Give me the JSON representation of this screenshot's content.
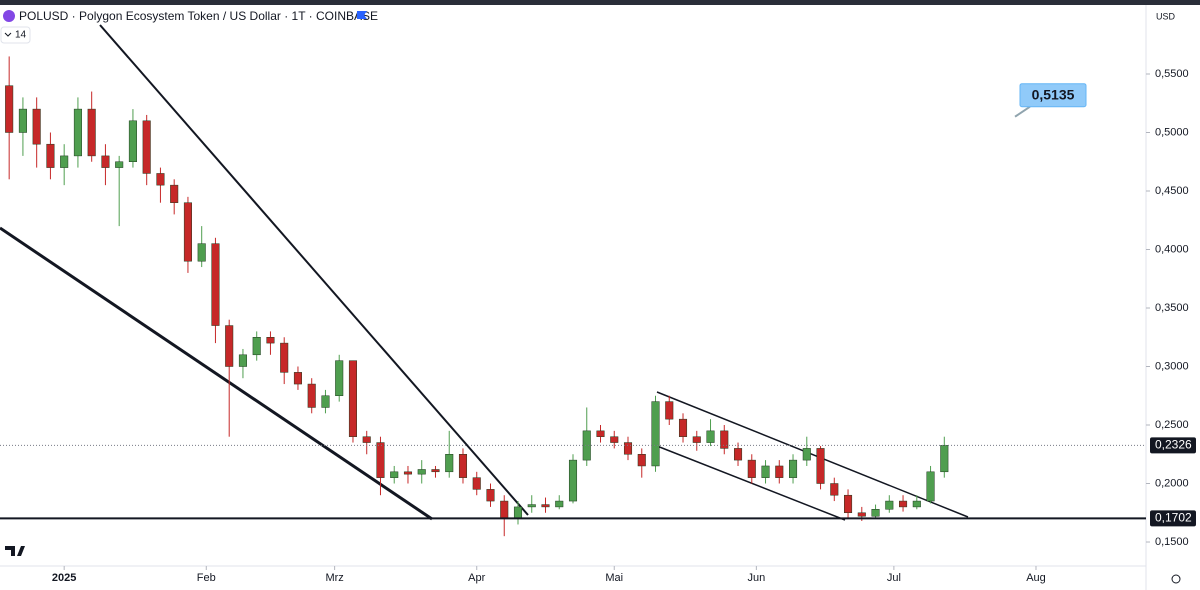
{
  "chart_data": {
    "type": "candlestick",
    "title": "POLUSD · Polygon Ecosystem Token / US Dollar · 1T · COINBASE",
    "indicator_label": "14",
    "currency": "USD",
    "up_color": "#4f9e4f",
    "down_color": "#c62828",
    "grid": false,
    "xlim": [
      -14,
      236
    ],
    "xticks": [
      {
        "value": 0,
        "label": "2025"
      },
      {
        "value": 31,
        "label": "Feb"
      },
      {
        "value": 59,
        "label": "Mrz"
      },
      {
        "value": 90,
        "label": "Apr"
      },
      {
        "value": 120,
        "label": "Mai"
      },
      {
        "value": 151,
        "label": "Jun"
      },
      {
        "value": 181,
        "label": "Jul"
      },
      {
        "value": 212,
        "label": "Aug"
      }
    ],
    "ylim": [
      0.1295,
      0.6064
    ],
    "yticks": [
      {
        "value": 0.15,
        "label": "0,1500"
      },
      {
        "value": 0.2,
        "label": "0,2000"
      },
      {
        "value": 0.25,
        "label": "0,2500"
      },
      {
        "value": 0.3,
        "label": "0,3000"
      },
      {
        "value": 0.35,
        "label": "0,3500"
      },
      {
        "value": 0.4,
        "label": "0,4000"
      },
      {
        "value": 0.45,
        "label": "0,4500"
      },
      {
        "value": 0.5,
        "label": "0,5000"
      },
      {
        "value": 0.55,
        "label": "0,5500"
      }
    ],
    "x": [
      -12,
      -9,
      -6,
      -3,
      0,
      3,
      6,
      9,
      12,
      15,
      18,
      21,
      24,
      27,
      30,
      33,
      36,
      39,
      42,
      45,
      48,
      51,
      54,
      57,
      60,
      63,
      66,
      69,
      72,
      75,
      78,
      81,
      84,
      87,
      90,
      93,
      96,
      99,
      102,
      105,
      108,
      111,
      114,
      117,
      120,
      123,
      126,
      129,
      132,
      135,
      138,
      141,
      144,
      147,
      150,
      153,
      156,
      159,
      162,
      165,
      168,
      171,
      174,
      177,
      180,
      183,
      186,
      189,
      192
    ],
    "open": [
      0.54,
      0.5,
      0.52,
      0.49,
      0.47,
      0.48,
      0.52,
      0.48,
      0.47,
      0.475,
      0.51,
      0.465,
      0.455,
      0.44,
      0.39,
      0.405,
      0.335,
      0.3,
      0.31,
      0.325,
      0.32,
      0.295,
      0.285,
      0.265,
      0.275,
      0.305,
      0.24,
      0.235,
      0.205,
      0.21,
      0.208,
      0.212,
      0.21,
      0.225,
      0.205,
      0.195,
      0.185,
      0.17,
      0.18,
      0.182,
      0.18,
      0.185,
      0.22,
      0.245,
      0.24,
      0.235,
      0.225,
      0.215,
      0.27,
      0.255,
      0.24,
      0.235,
      0.245,
      0.23,
      0.22,
      0.205,
      0.215,
      0.205,
      0.22,
      0.23,
      0.2,
      0.19,
      0.175,
      0.172,
      0.178,
      0.185,
      0.18,
      0.185,
      0.21
    ],
    "high": [
      0.565,
      0.53,
      0.53,
      0.5,
      0.49,
      0.53,
      0.535,
      0.49,
      0.48,
      0.52,
      0.515,
      0.47,
      0.46,
      0.445,
      0.42,
      0.41,
      0.34,
      0.315,
      0.33,
      0.33,
      0.325,
      0.3,
      0.29,
      0.28,
      0.31,
      0.305,
      0.245,
      0.24,
      0.215,
      0.215,
      0.22,
      0.215,
      0.245,
      0.23,
      0.21,
      0.2,
      0.19,
      0.185,
      0.19,
      0.188,
      0.19,
      0.225,
      0.265,
      0.25,
      0.245,
      0.24,
      0.23,
      0.275,
      0.275,
      0.26,
      0.245,
      0.255,
      0.25,
      0.235,
      0.225,
      0.22,
      0.22,
      0.225,
      0.24,
      0.232,
      0.205,
      0.195,
      0.18,
      0.182,
      0.19,
      0.19,
      0.19,
      0.215,
      0.24
    ],
    "low": [
      0.46,
      0.48,
      0.47,
      0.46,
      0.455,
      0.47,
      0.475,
      0.455,
      0.42,
      0.47,
      0.455,
      0.44,
      0.43,
      0.38,
      0.385,
      0.32,
      0.24,
      0.29,
      0.305,
      0.31,
      0.285,
      0.28,
      0.26,
      0.26,
      0.27,
      0.235,
      0.225,
      0.19,
      0.2,
      0.2,
      0.2,
      0.205,
      0.205,
      0.2,
      0.19,
      0.18,
      0.155,
      0.165,
      0.175,
      0.175,
      0.178,
      0.183,
      0.215,
      0.235,
      0.23,
      0.22,
      0.205,
      0.21,
      0.25,
      0.235,
      0.228,
      0.232,
      0.225,
      0.215,
      0.2,
      0.2,
      0.2,
      0.2,
      0.215,
      0.195,
      0.185,
      0.17,
      0.168,
      0.17,
      0.175,
      0.176,
      0.178,
      0.183,
      0.205
    ],
    "close": [
      0.5,
      0.52,
      0.49,
      0.47,
      0.48,
      0.52,
      0.48,
      0.47,
      0.475,
      0.51,
      0.465,
      0.455,
      0.44,
      0.39,
      0.405,
      0.335,
      0.3,
      0.31,
      0.325,
      0.32,
      0.295,
      0.285,
      0.265,
      0.275,
      0.305,
      0.24,
      0.235,
      0.205,
      0.21,
      0.208,
      0.212,
      0.21,
      0.225,
      0.205,
      0.195,
      0.185,
      0.17,
      0.18,
      0.182,
      0.18,
      0.185,
      0.22,
      0.245,
      0.24,
      0.235,
      0.225,
      0.215,
      0.27,
      0.255,
      0.24,
      0.235,
      0.245,
      0.23,
      0.22,
      0.205,
      0.215,
      0.205,
      0.22,
      0.23,
      0.2,
      0.19,
      0.175,
      0.172,
      0.178,
      0.185,
      0.18,
      0.185,
      0.21,
      0.2326
    ],
    "last_price": {
      "value": 0.2326,
      "label": "0,2326"
    },
    "support_level": {
      "value": 0.1702,
      "label": "0,1702"
    },
    "target_price": {
      "value": 0.5135,
      "label": "0,5135"
    }
  }
}
